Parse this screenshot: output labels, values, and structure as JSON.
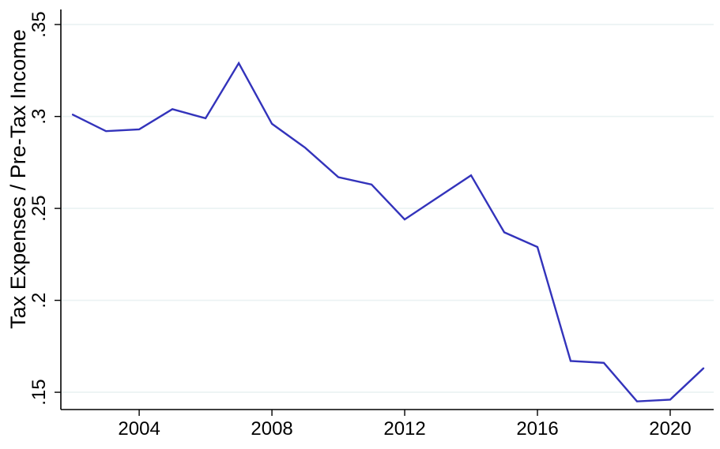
{
  "chart_data": {
    "type": "line",
    "title": "",
    "xlabel": "",
    "ylabel": "Tax Expenses / Pre-Tax Income",
    "x": [
      2002,
      2003,
      2004,
      2005,
      2006,
      2007,
      2008,
      2009,
      2010,
      2011,
      2012,
      2013,
      2014,
      2015,
      2016,
      2017,
      2018,
      2019,
      2020,
      2021
    ],
    "values": [
      0.301,
      0.292,
      0.293,
      0.304,
      0.299,
      0.329,
      0.296,
      0.283,
      0.267,
      0.263,
      0.244,
      0.256,
      0.268,
      0.237,
      0.229,
      0.167,
      0.166,
      0.145,
      0.146,
      0.163
    ],
    "xticks": [
      2004,
      2008,
      2012,
      2016,
      2020
    ],
    "ytick_values": [
      0.15,
      0.2,
      0.25,
      0.3,
      0.35
    ],
    "ytick_labels": [
      ".15",
      ".2",
      ".25",
      ".3",
      ".35"
    ],
    "xlim": [
      2001.64,
      2021.31
    ],
    "ylim": [
      0.1406,
      0.3582
    ],
    "grid": true,
    "legend": "none",
    "colors": {
      "line": "#3333bb",
      "grid": "#eaf2f3",
      "axis": "#000000",
      "background": "#ffffff"
    }
  }
}
